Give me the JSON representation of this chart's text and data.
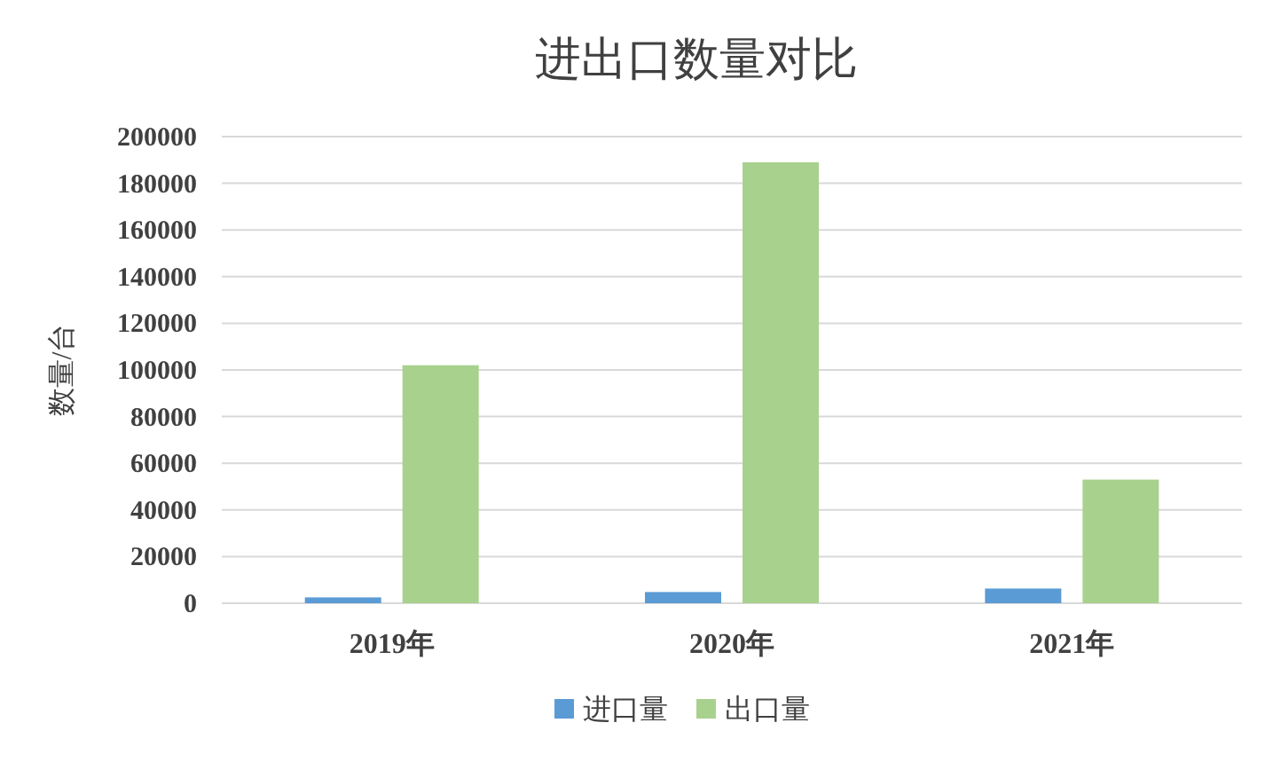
{
  "chart_data": {
    "type": "bar",
    "title": "进出口数量对比",
    "ylabel": "数量/台",
    "categories": [
      "2019年",
      "2020年",
      "2021年"
    ],
    "series": [
      {
        "name": "进口量",
        "color": "#5b9bd5",
        "values": [
          2500,
          4800,
          6300
        ]
      },
      {
        "name": "出口量",
        "color": "#a9d18e",
        "values": [
          102000,
          189000,
          53000
        ]
      }
    ],
    "ylim": [
      0,
      200000
    ],
    "yticks": [
      0,
      20000,
      40000,
      60000,
      80000,
      100000,
      120000,
      140000,
      160000,
      180000,
      200000
    ],
    "grid": "y",
    "legend": "bottom"
  }
}
